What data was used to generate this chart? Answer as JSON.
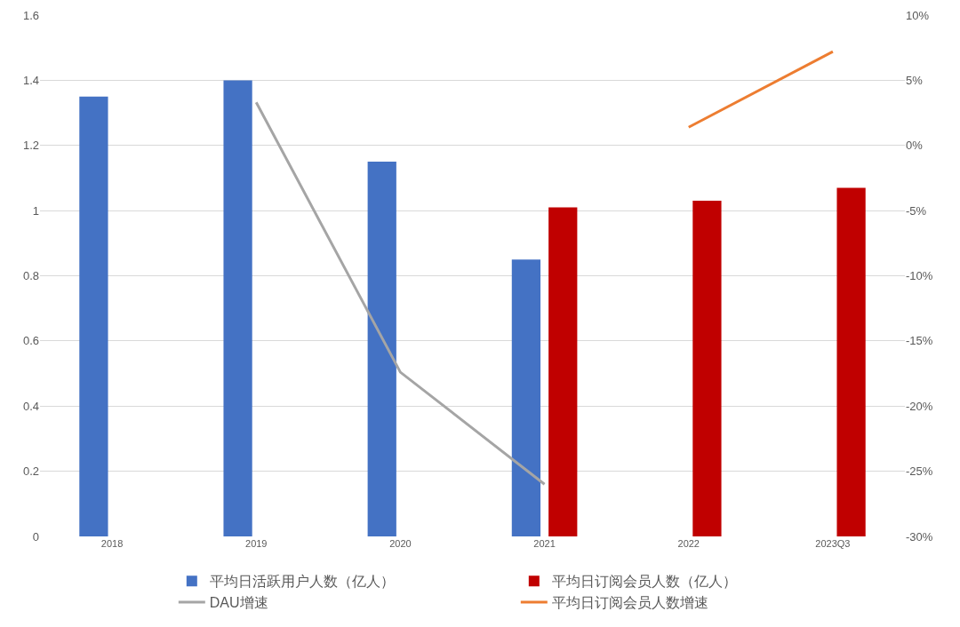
{
  "chart_data": {
    "type": "bar",
    "categories": [
      "2018",
      "2019",
      "2020",
      "2021",
      "2022",
      "2023Q3"
    ],
    "series": [
      {
        "name": "平均日活跃用户人数（亿人）",
        "color": "#4472c4",
        "values": [
          1.35,
          1.4,
          1.15,
          0.85,
          null,
          null
        ]
      },
      {
        "name": "平均日订阅会员人数（亿人）",
        "color": "#c00000",
        "values": [
          null,
          null,
          null,
          1.01,
          1.03,
          1.07
        ]
      },
      {
        "name": "DAU增速",
        "type": "line",
        "axis": "y2",
        "color": "#a5a5a5",
        "values": [
          null,
          3.3,
          -17.4,
          -26.0,
          null,
          null
        ]
      },
      {
        "name": "平均日订阅会员人数增速",
        "type": "line",
        "axis": "y2",
        "color": "#ed7d31",
        "values": [
          null,
          null,
          null,
          null,
          1.4,
          7.2
        ]
      }
    ],
    "ylim": [
      0,
      1.6
    ],
    "yticks": [
      0,
      0.2,
      0.4,
      0.6,
      0.8,
      1,
      1.2,
      1.4,
      1.6
    ],
    "y2lim": [
      -30,
      10
    ],
    "y2ticks": [
      {
        "value": -30,
        "label": "-30%"
      },
      {
        "value": -25,
        "label": "-25%"
      },
      {
        "value": -20,
        "label": "-20%"
      },
      {
        "value": -15,
        "label": "-15%"
      },
      {
        "value": -10,
        "label": "-10%"
      },
      {
        "value": -5,
        "label": "-5%"
      },
      {
        "value": 0,
        "label": "0%"
      },
      {
        "value": 5,
        "label": "5%"
      },
      {
        "value": 10,
        "label": "10%"
      }
    ],
    "grid": "y",
    "legend": "bottom",
    "marker": "none",
    "line_style": "solid"
  }
}
